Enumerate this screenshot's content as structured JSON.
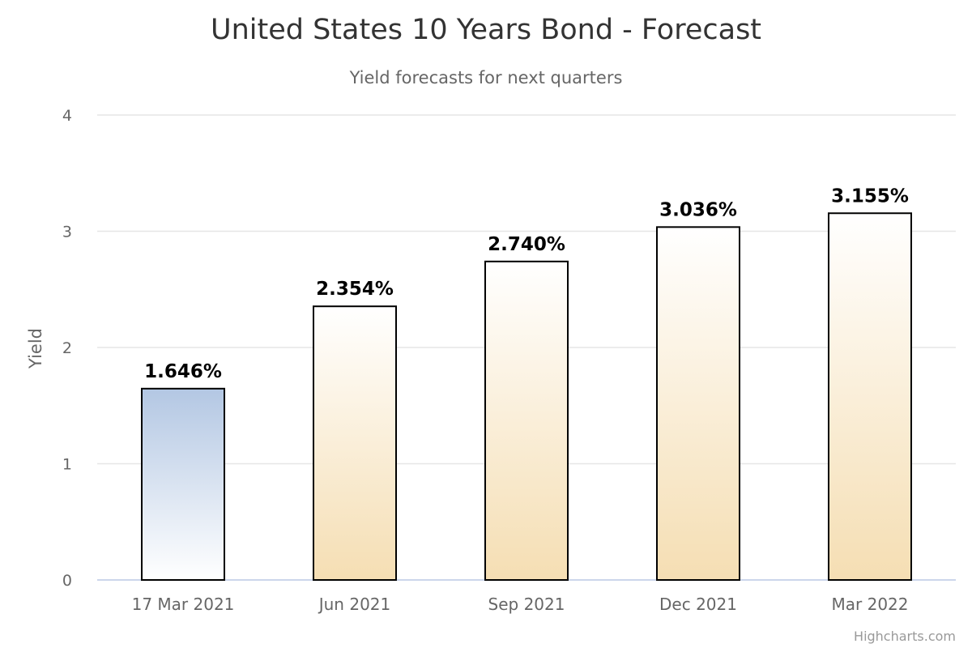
{
  "chart_data": {
    "type": "bar",
    "title": "United States 10 Years Bond - Forecast",
    "subtitle": "Yield forecasts for next quarters",
    "xlabel": "",
    "ylabel": "Yield",
    "ylim": [
      0,
      4
    ],
    "yticks": [
      "0",
      "1",
      "2",
      "3",
      "4"
    ],
    "grid": true,
    "legend": "none",
    "categories": [
      "17 Mar 2021",
      "Jun 2021",
      "Sep 2021",
      "Dec 2021",
      "Mar 2022"
    ],
    "values": [
      1.646,
      2.354,
      2.74,
      3.036,
      3.155
    ],
    "data_labels": [
      "1.646%",
      "2.354%",
      "2.740%",
      "3.036%",
      "3.155%"
    ],
    "colors": {
      "actual_top": "#b3c7e3",
      "actual_bottom": "#ffffff",
      "forecast_top": "#ffffff",
      "forecast_bottom": "#f5deb3",
      "bar_border": "#000000"
    }
  },
  "credits": "Highcharts.com"
}
